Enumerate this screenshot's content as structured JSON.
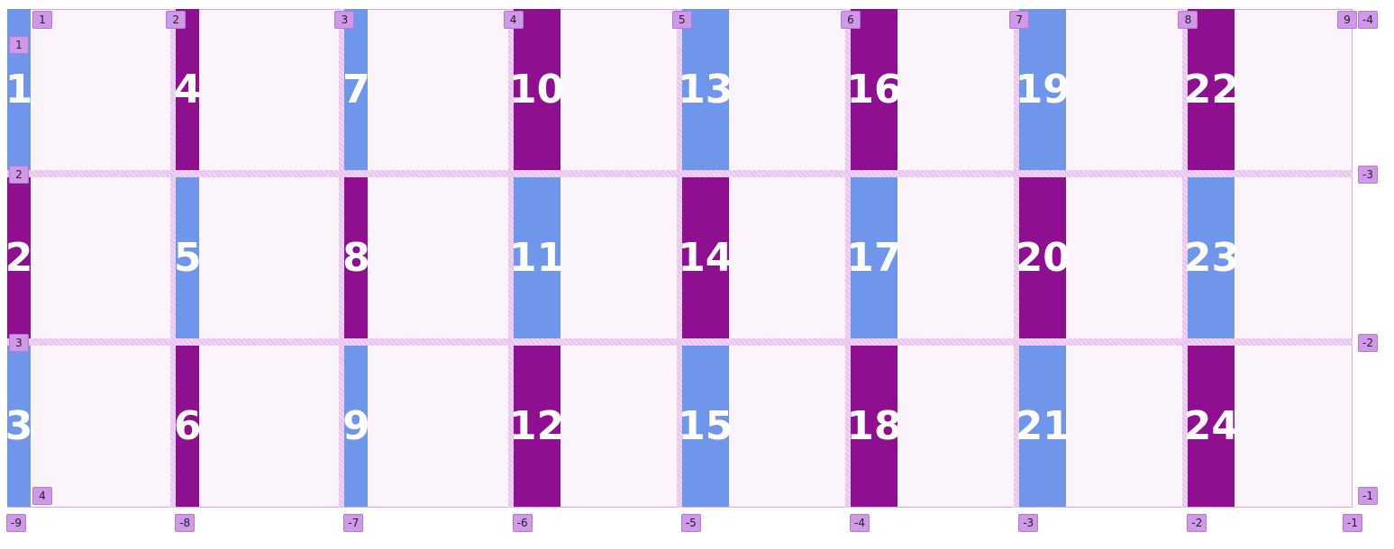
{
  "items": [
    "1",
    "2",
    "3",
    "4",
    "5",
    "6",
    "7",
    "8",
    "9",
    "10",
    "11",
    "12",
    "13",
    "14",
    "15",
    "16",
    "17",
    "18",
    "19",
    "20",
    "21",
    "22",
    "23",
    "24"
  ],
  "column_lines_top": [
    "1",
    "2",
    "3",
    "4",
    "5",
    "6",
    "7",
    "8",
    "9"
  ],
  "column_lines_bottom": [
    "-9",
    "-8",
    "-7",
    "-6",
    "-5",
    "-4",
    "-3",
    "-2",
    "-1"
  ],
  "row_lines_left": [
    "1",
    "2",
    "3",
    "4"
  ],
  "row_lines_right": [
    "-4",
    "-3",
    "-2",
    "-1"
  ]
}
